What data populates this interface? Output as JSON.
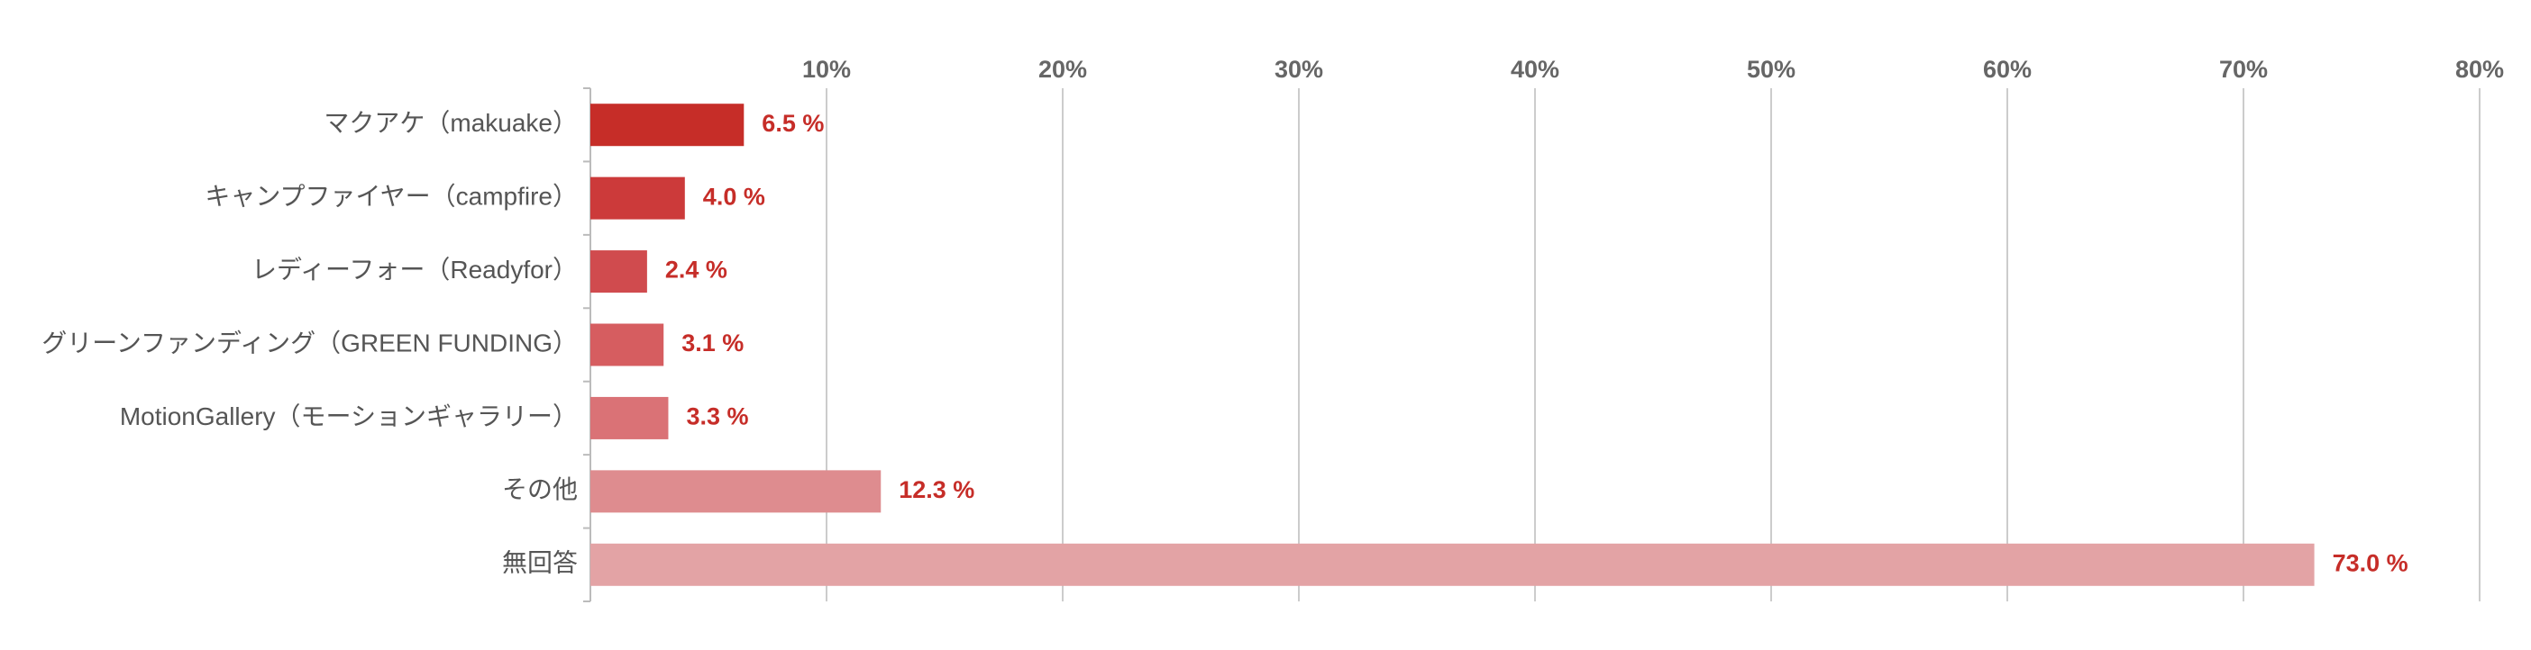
{
  "chart_data": {
    "type": "bar",
    "orientation": "horizontal",
    "categories": [
      "マクアケ（makuake）",
      "キャンプファイヤー（campfire）",
      "レディーフォー（Readyfor）",
      "グリーンファンディング（GREEN FUNDING）",
      "MotionGallery（モーションギャラリー）",
      "その他",
      "無回答"
    ],
    "values": [
      6.5,
      4.0,
      2.4,
      3.1,
      3.3,
      12.3,
      73.0
    ],
    "value_labels": [
      "6.5 %",
      "4.0 %",
      "2.4 %",
      "3.1 %",
      "3.3 %",
      "12.3 %",
      "73.0 %"
    ],
    "colors": [
      "#c62d28",
      "#cc3a3a",
      "#d04b4e",
      "#d65d60",
      "#da7276",
      "#de8c8f",
      "#e3a3a5"
    ],
    "label_color": "#c62d28",
    "xlim": [
      0,
      80
    ],
    "xticks": [
      {
        "value": 10,
        "label": "10%"
      },
      {
        "value": 20,
        "label": "20%"
      },
      {
        "value": 30,
        "label": "30%"
      },
      {
        "value": 40,
        "label": "40%"
      },
      {
        "value": 50,
        "label": "50%"
      },
      {
        "value": 60,
        "label": "60%"
      },
      {
        "value": 70,
        "label": "70%"
      },
      {
        "value": 80,
        "label": "80%"
      }
    ],
    "grid": true
  }
}
